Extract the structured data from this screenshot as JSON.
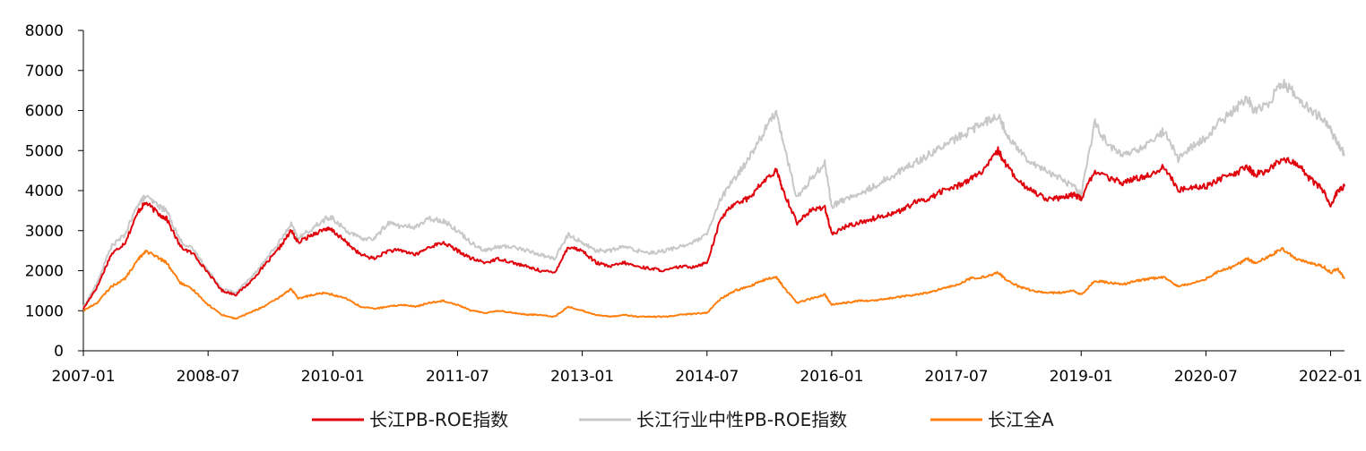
{
  "chart_data": {
    "type": "line",
    "title": "",
    "xlabel": "",
    "ylabel": "",
    "ylim": [
      0,
      8000
    ],
    "yticks": [
      0,
      1000,
      2000,
      3000,
      4000,
      5000,
      6000,
      7000,
      8000
    ],
    "yticklabels": [
      "0",
      "1000",
      "2000",
      "3000",
      "4000",
      "5000",
      "6000",
      "7000",
      "8000"
    ],
    "xlim": [
      "2007-01",
      "2022-03"
    ],
    "xticks": [
      "2007-01",
      "2008-07",
      "2010-01",
      "2011-07",
      "2013-01",
      "2014-07",
      "2016-01",
      "2017-07",
      "2019-01",
      "2020-07",
      "2022-01"
    ],
    "grid": false,
    "legend_position": "bottom",
    "x": [
      "2007-01",
      "2007-03",
      "2007-05",
      "2007-07",
      "2007-09",
      "2007-10",
      "2007-12",
      "2008-01",
      "2008-03",
      "2008-05",
      "2008-07",
      "2008-09",
      "2008-11",
      "2009-01",
      "2009-03",
      "2009-05",
      "2009-07",
      "2009-08",
      "2009-10",
      "2009-12",
      "2010-01",
      "2010-03",
      "2010-05",
      "2010-07",
      "2010-09",
      "2010-11",
      "2011-01",
      "2011-03",
      "2011-05",
      "2011-07",
      "2011-09",
      "2011-11",
      "2012-01",
      "2012-03",
      "2012-05",
      "2012-07",
      "2012-09",
      "2012-11",
      "2013-01",
      "2013-03",
      "2013-05",
      "2013-07",
      "2013-09",
      "2013-11",
      "2014-01",
      "2014-03",
      "2014-05",
      "2014-07",
      "2014-09",
      "2014-11",
      "2015-01",
      "2015-03",
      "2015-05",
      "2015-06",
      "2015-08",
      "2015-10",
      "2015-12",
      "2016-01",
      "2016-03",
      "2016-05",
      "2016-07",
      "2016-09",
      "2016-11",
      "2017-01",
      "2017-03",
      "2017-05",
      "2017-07",
      "2017-09",
      "2017-11",
      "2018-01",
      "2018-02",
      "2018-04",
      "2018-06",
      "2018-08",
      "2018-10",
      "2018-12",
      "2019-01",
      "2019-03",
      "2019-05",
      "2019-07",
      "2019-09",
      "2019-11",
      "2020-01",
      "2020-03",
      "2020-05",
      "2020-07",
      "2020-09",
      "2020-11",
      "2021-01",
      "2021-02",
      "2021-04",
      "2021-06",
      "2021-08",
      "2021-10",
      "2021-12",
      "2022-01",
      "2022-02",
      "2022-03"
    ],
    "series": [
      {
        "name": "长江PB-ROE指数",
        "color": "#E0000B",
        "values": [
          1050,
          1600,
          2400,
          2700,
          3500,
          3700,
          3400,
          3300,
          2600,
          2400,
          1950,
          1500,
          1400,
          1700,
          2100,
          2500,
          3000,
          2700,
          2900,
          3050,
          3000,
          2700,
          2400,
          2300,
          2500,
          2500,
          2400,
          2600,
          2700,
          2500,
          2300,
          2200,
          2300,
          2200,
          2100,
          2000,
          1950,
          2600,
          2500,
          2200,
          2100,
          2200,
          2100,
          2050,
          2000,
          2100,
          2100,
          2200,
          3300,
          3700,
          3800,
          4200,
          4500,
          4000,
          3200,
          3500,
          3600,
          2900,
          3100,
          3200,
          3300,
          3400,
          3500,
          3700,
          3800,
          4000,
          4100,
          4300,
          4500,
          5000,
          4700,
          4200,
          4000,
          3800,
          3800,
          3900,
          3800,
          4500,
          4300,
          4200,
          4300,
          4400,
          4600,
          4000,
          4100,
          4100,
          4300,
          4400,
          4600,
          4400,
          4500,
          4800,
          4700,
          4300,
          4000,
          3600,
          4000,
          4100
        ]
      },
      {
        "name": "长江行业中性PB-ROE指数",
        "color": "#C8C8C8",
        "values": [
          1080,
          1700,
          2600,
          2900,
          3700,
          3850,
          3600,
          3500,
          2750,
          2500,
          2000,
          1550,
          1450,
          1800,
          2200,
          2650,
          3150,
          2800,
          3050,
          3300,
          3300,
          3000,
          2800,
          2800,
          3200,
          3100,
          3100,
          3300,
          3250,
          3000,
          2700,
          2500,
          2600,
          2600,
          2500,
          2400,
          2300,
          2900,
          2700,
          2500,
          2500,
          2600,
          2500,
          2450,
          2500,
          2600,
          2700,
          2900,
          3800,
          4300,
          4800,
          5400,
          6000,
          5200,
          3800,
          4300,
          4700,
          3600,
          3800,
          3900,
          4100,
          4300,
          4500,
          4700,
          4900,
          5100,
          5300,
          5500,
          5700,
          5900,
          5500,
          5000,
          4700,
          4500,
          4300,
          4100,
          3900,
          5700,
          5100,
          4900,
          5000,
          5200,
          5500,
          4800,
          5100,
          5300,
          5700,
          6000,
          6300,
          6000,
          6200,
          6700,
          6400,
          6000,
          5800,
          5500,
          5200,
          4900
        ]
      },
      {
        "name": "长江全A",
        "color": "#FF7F0E",
        "values": [
          1000,
          1200,
          1600,
          1800,
          2300,
          2500,
          2300,
          2200,
          1700,
          1500,
          1150,
          900,
          800,
          950,
          1100,
          1300,
          1550,
          1300,
          1400,
          1450,
          1400,
          1300,
          1100,
          1050,
          1100,
          1150,
          1100,
          1200,
          1250,
          1150,
          1000,
          950,
          1000,
          950,
          900,
          900,
          850,
          1100,
          1000,
          900,
          850,
          900,
          850,
          850,
          850,
          900,
          920,
          950,
          1300,
          1500,
          1600,
          1750,
          1850,
          1600,
          1200,
          1300,
          1400,
          1150,
          1200,
          1250,
          1250,
          1300,
          1350,
          1400,
          1450,
          1550,
          1650,
          1800,
          1850,
          1950,
          1800,
          1600,
          1500,
          1450,
          1450,
          1500,
          1400,
          1750,
          1700,
          1650,
          1750,
          1800,
          1850,
          1600,
          1700,
          1800,
          2000,
          2100,
          2300,
          2200,
          2350,
          2550,
          2300,
          2200,
          2100,
          1950,
          2050,
          1800
        ]
      }
    ]
  },
  "legend": {
    "items": [
      {
        "label": "长江PB-ROE指数",
        "color": "#E0000B"
      },
      {
        "label": "长江行业中性PB-ROE指数",
        "color": "#C8C8C8"
      },
      {
        "label": "长江全A",
        "color": "#FF7F0E"
      }
    ]
  }
}
